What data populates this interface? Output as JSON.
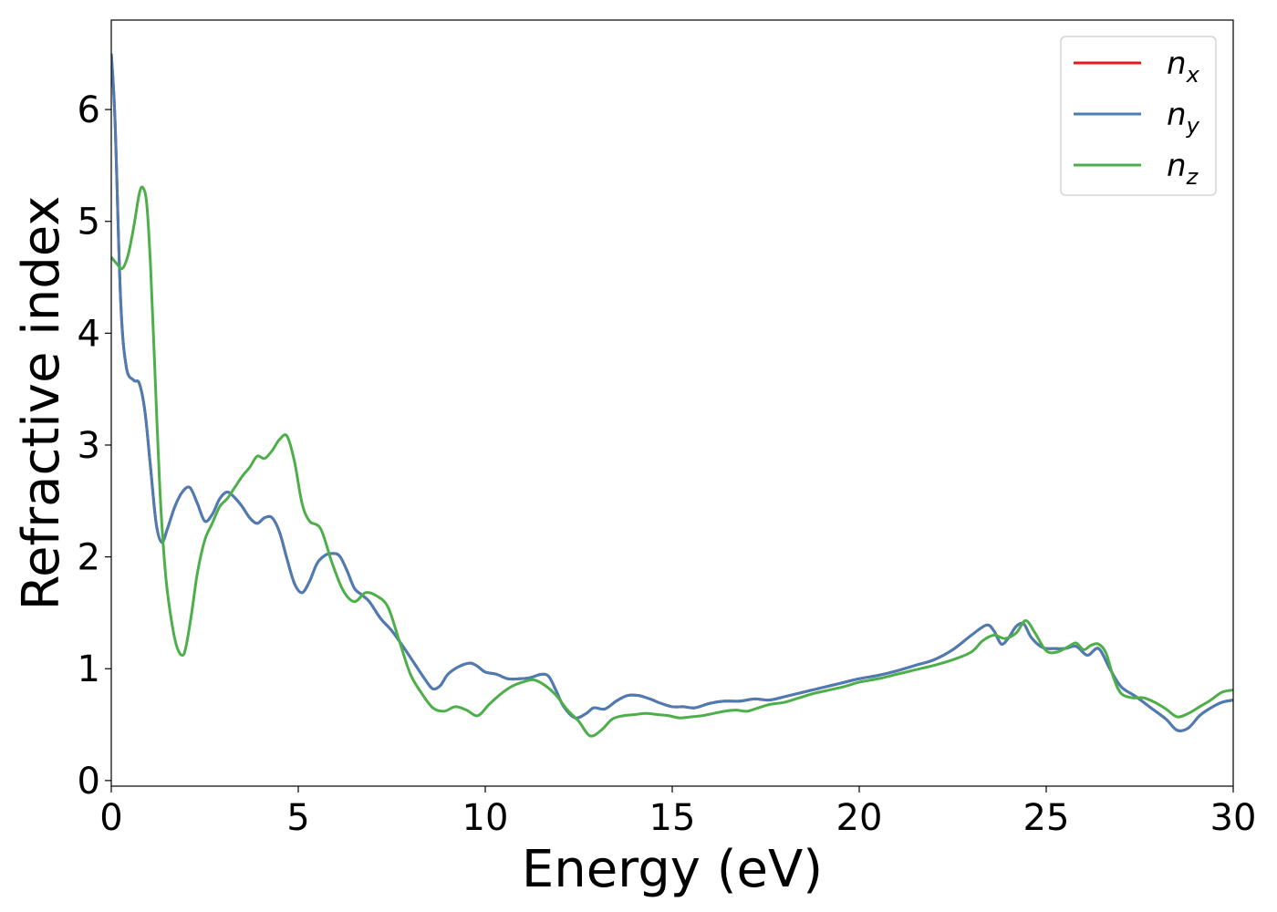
{
  "chart_data": {
    "type": "line",
    "xlabel": "Energy (eV)",
    "ylabel": "Refractive index",
    "xlim": [
      0,
      30
    ],
    "ylim": [
      -0.05,
      6.8
    ],
    "x_ticks": [
      0,
      5,
      10,
      15,
      20,
      25,
      30
    ],
    "y_ticks": [
      0,
      1,
      2,
      3,
      4,
      5,
      6
    ],
    "grid": false,
    "legend_placement": "top-right",
    "series": [
      {
        "name": "n",
        "subscript": "x",
        "color": "#e41a1c",
        "x": [
          0,
          0.1,
          0.25,
          0.4,
          0.6,
          0.75,
          0.9,
          1.05,
          1.2,
          1.35,
          1.5,
          1.7,
          1.9,
          2.1,
          2.3,
          2.5,
          2.7,
          2.9,
          3.1,
          3.3,
          3.5,
          3.7,
          3.9,
          4.1,
          4.3,
          4.5,
          4.7,
          4.9,
          5.1,
          5.3,
          5.5,
          5.7,
          5.9,
          6.1,
          6.3,
          6.5,
          6.7,
          6.9,
          7.2,
          7.5,
          7.8,
          8.1,
          8.4,
          8.6,
          8.8,
          9.0,
          9.3,
          9.6,
          9.8,
          10.0,
          10.3,
          10.6,
          10.9,
          11.2,
          11.5,
          11.7,
          11.9,
          12.1,
          12.4,
          12.7,
          12.9,
          13.2,
          13.5,
          13.8,
          14.1,
          14.4,
          14.7,
          15.0,
          15.3,
          15.6,
          16.0,
          16.4,
          16.8,
          17.2,
          17.6,
          18.0,
          18.5,
          19.0,
          19.5,
          20.0,
          20.5,
          21.0,
          21.5,
          22.0,
          22.5,
          23.0,
          23.4,
          23.6,
          23.8,
          24.0,
          24.2,
          24.4,
          24.6,
          24.9,
          25.2,
          25.5,
          25.8,
          26.1,
          26.4,
          26.7,
          27.0,
          27.4,
          27.8,
          28.2,
          28.5,
          28.8,
          29.1,
          29.4,
          29.7,
          30.0
        ],
        "values": [
          6.5,
          5.9,
          4.3,
          3.7,
          3.58,
          3.55,
          3.3,
          2.8,
          2.3,
          2.13,
          2.25,
          2.45,
          2.58,
          2.62,
          2.48,
          2.32,
          2.38,
          2.52,
          2.58,
          2.53,
          2.45,
          2.35,
          2.3,
          2.35,
          2.35,
          2.22,
          1.98,
          1.76,
          1.68,
          1.78,
          1.94,
          2.01,
          2.03,
          2.01,
          1.88,
          1.72,
          1.66,
          1.6,
          1.45,
          1.34,
          1.2,
          1.05,
          0.9,
          0.82,
          0.85,
          0.95,
          1.02,
          1.05,
          1.02,
          0.97,
          0.95,
          0.91,
          0.91,
          0.92,
          0.95,
          0.93,
          0.8,
          0.66,
          0.56,
          0.6,
          0.65,
          0.64,
          0.71,
          0.76,
          0.76,
          0.73,
          0.69,
          0.66,
          0.66,
          0.65,
          0.69,
          0.71,
          0.71,
          0.73,
          0.72,
          0.75,
          0.79,
          0.83,
          0.87,
          0.91,
          0.94,
          0.98,
          1.03,
          1.08,
          1.17,
          1.3,
          1.39,
          1.34,
          1.22,
          1.28,
          1.38,
          1.4,
          1.28,
          1.19,
          1.18,
          1.18,
          1.2,
          1.12,
          1.18,
          1.0,
          0.84,
          0.75,
          0.65,
          0.55,
          0.45,
          0.47,
          0.58,
          0.65,
          0.7,
          0.72
        ]
      },
      {
        "name": "n",
        "subscript": "y",
        "color": "#4a7db4",
        "x": [
          0,
          0.1,
          0.25,
          0.4,
          0.6,
          0.75,
          0.9,
          1.05,
          1.2,
          1.35,
          1.5,
          1.7,
          1.9,
          2.1,
          2.3,
          2.5,
          2.7,
          2.9,
          3.1,
          3.3,
          3.5,
          3.7,
          3.9,
          4.1,
          4.3,
          4.5,
          4.7,
          4.9,
          5.1,
          5.3,
          5.5,
          5.7,
          5.9,
          6.1,
          6.3,
          6.5,
          6.7,
          6.9,
          7.2,
          7.5,
          7.8,
          8.1,
          8.4,
          8.6,
          8.8,
          9.0,
          9.3,
          9.6,
          9.8,
          10.0,
          10.3,
          10.6,
          10.9,
          11.2,
          11.5,
          11.7,
          11.9,
          12.1,
          12.4,
          12.7,
          12.9,
          13.2,
          13.5,
          13.8,
          14.1,
          14.4,
          14.7,
          15.0,
          15.3,
          15.6,
          16.0,
          16.4,
          16.8,
          17.2,
          17.6,
          18.0,
          18.5,
          19.0,
          19.5,
          20.0,
          20.5,
          21.0,
          21.5,
          22.0,
          22.5,
          23.0,
          23.4,
          23.6,
          23.8,
          24.0,
          24.2,
          24.4,
          24.6,
          24.9,
          25.2,
          25.5,
          25.8,
          26.1,
          26.4,
          26.7,
          27.0,
          27.4,
          27.8,
          28.2,
          28.5,
          28.8,
          29.1,
          29.4,
          29.7,
          30.0
        ],
        "values": [
          6.5,
          5.9,
          4.3,
          3.7,
          3.58,
          3.55,
          3.3,
          2.8,
          2.3,
          2.13,
          2.25,
          2.45,
          2.58,
          2.62,
          2.48,
          2.32,
          2.38,
          2.52,
          2.58,
          2.53,
          2.45,
          2.35,
          2.3,
          2.35,
          2.35,
          2.22,
          1.98,
          1.76,
          1.68,
          1.78,
          1.94,
          2.01,
          2.03,
          2.01,
          1.88,
          1.72,
          1.66,
          1.6,
          1.45,
          1.34,
          1.2,
          1.05,
          0.9,
          0.82,
          0.85,
          0.95,
          1.02,
          1.05,
          1.02,
          0.97,
          0.95,
          0.91,
          0.91,
          0.92,
          0.95,
          0.93,
          0.8,
          0.66,
          0.56,
          0.6,
          0.65,
          0.64,
          0.71,
          0.76,
          0.76,
          0.73,
          0.69,
          0.66,
          0.66,
          0.65,
          0.69,
          0.71,
          0.71,
          0.73,
          0.72,
          0.75,
          0.79,
          0.83,
          0.87,
          0.91,
          0.94,
          0.98,
          1.03,
          1.08,
          1.17,
          1.3,
          1.39,
          1.34,
          1.22,
          1.28,
          1.38,
          1.4,
          1.28,
          1.19,
          1.18,
          1.18,
          1.2,
          1.12,
          1.18,
          1.0,
          0.84,
          0.75,
          0.65,
          0.55,
          0.45,
          0.47,
          0.58,
          0.65,
          0.7,
          0.72
        ]
      },
      {
        "name": "n",
        "subscript": "z",
        "color": "#4daf4a",
        "x": [
          0,
          0.15,
          0.3,
          0.45,
          0.6,
          0.75,
          0.85,
          0.95,
          1.05,
          1.15,
          1.3,
          1.45,
          1.6,
          1.75,
          1.9,
          2.0,
          2.15,
          2.3,
          2.5,
          2.7,
          2.9,
          3.1,
          3.3,
          3.5,
          3.7,
          3.9,
          4.1,
          4.3,
          4.5,
          4.7,
          4.9,
          5.1,
          5.3,
          5.6,
          5.9,
          6.2,
          6.5,
          6.8,
          7.1,
          7.4,
          7.7,
          8.0,
          8.3,
          8.6,
          8.9,
          9.2,
          9.5,
          9.8,
          10.1,
          10.4,
          10.7,
          11.0,
          11.3,
          11.6,
          11.9,
          12.2,
          12.5,
          12.8,
          13.1,
          13.4,
          13.7,
          14.0,
          14.3,
          14.6,
          14.9,
          15.2,
          15.5,
          15.8,
          16.1,
          16.4,
          16.7,
          17.0,
          17.3,
          17.6,
          18.0,
          18.4,
          18.8,
          19.2,
          19.6,
          20.0,
          20.5,
          21.0,
          21.5,
          22.0,
          22.5,
          23.0,
          23.3,
          23.6,
          23.9,
          24.2,
          24.45,
          24.7,
          25.0,
          25.3,
          25.6,
          25.8,
          26.0,
          26.2,
          26.4,
          26.6,
          26.8,
          27.0,
          27.3,
          27.6,
          27.9,
          28.2,
          28.5,
          28.8,
          29.1,
          29.4,
          29.7,
          30.0
        ],
        "values": [
          4.68,
          4.62,
          4.58,
          4.7,
          4.95,
          5.25,
          5.3,
          5.15,
          4.6,
          3.8,
          2.6,
          1.85,
          1.45,
          1.2,
          1.12,
          1.2,
          1.5,
          1.85,
          2.15,
          2.3,
          2.45,
          2.52,
          2.62,
          2.72,
          2.8,
          2.9,
          2.88,
          2.95,
          3.05,
          3.08,
          2.85,
          2.48,
          2.32,
          2.25,
          1.95,
          1.7,
          1.6,
          1.68,
          1.65,
          1.55,
          1.25,
          0.95,
          0.78,
          0.65,
          0.62,
          0.66,
          0.63,
          0.58,
          0.68,
          0.77,
          0.84,
          0.88,
          0.9,
          0.85,
          0.76,
          0.63,
          0.53,
          0.4,
          0.45,
          0.55,
          0.58,
          0.59,
          0.6,
          0.59,
          0.58,
          0.56,
          0.57,
          0.58,
          0.6,
          0.62,
          0.63,
          0.62,
          0.65,
          0.68,
          0.7,
          0.74,
          0.78,
          0.81,
          0.84,
          0.88,
          0.91,
          0.95,
          0.99,
          1.03,
          1.08,
          1.15,
          1.25,
          1.3,
          1.27,
          1.32,
          1.43,
          1.32,
          1.16,
          1.15,
          1.2,
          1.23,
          1.17,
          1.21,
          1.22,
          1.14,
          0.92,
          0.78,
          0.74,
          0.74,
          0.7,
          0.64,
          0.57,
          0.6,
          0.66,
          0.72,
          0.79,
          0.81
        ]
      }
    ]
  }
}
